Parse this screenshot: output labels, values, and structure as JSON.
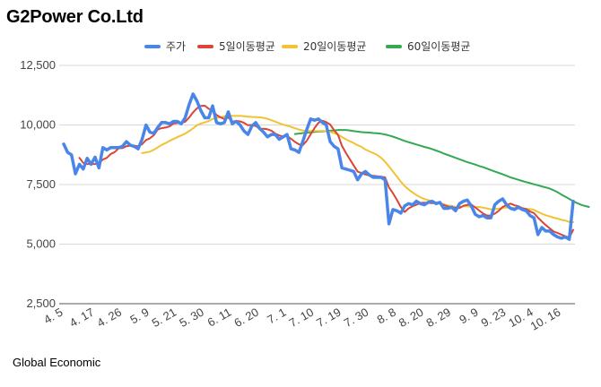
{
  "title": "G2Power Co.Ltd",
  "source": "Global Economic",
  "chart_data": {
    "type": "line",
    "ylim": [
      2500,
      12500
    ],
    "yticks": [
      "12,500",
      "10,000",
      "7,500",
      "5,000",
      "2,500"
    ],
    "ytick_values": [
      12500,
      10000,
      7500,
      5000,
      2500
    ],
    "x_tick_labels": [
      "4. 5",
      "4. 17",
      "4. 26",
      "5. 9",
      "5. 21",
      "5. 30",
      "6. 11",
      "6. 20",
      "7. 1",
      "7. 10",
      "7. 19",
      "7. 30",
      "8. 8",
      "8. 20",
      "8. 29",
      "9. 9",
      "9. 23",
      "10. 4",
      "10. 16"
    ],
    "x_tick_index": [
      0,
      8,
      15,
      22,
      29,
      36,
      43,
      50,
      57,
      64,
      71,
      78,
      85,
      92,
      99,
      106,
      113,
      120,
      127
    ],
    "n_points": 131,
    "grid": true,
    "legend_position": "top",
    "series": [
      {
        "name": "주가",
        "color": "#4a86e8",
        "width": 3.5,
        "values": [
          9200,
          8850,
          8750,
          7950,
          8350,
          8150,
          8600,
          8350,
          8650,
          8200,
          9050,
          8950,
          9050,
          9050,
          9050,
          9100,
          9300,
          9150,
          9100,
          9000,
          9400,
          10000,
          9700,
          9650,
          9900,
          10100,
          10100,
          10050,
          10150,
          10150,
          10050,
          10300,
          10850,
          11300,
          11000,
          10600,
          10300,
          10300,
          10800,
          10100,
          10050,
          10100,
          10550,
          10050,
          10150,
          10000,
          9750,
          9600,
          9950,
          10100,
          9850,
          9700,
          9500,
          9600,
          9600,
          9400,
          9500,
          9600,
          9000,
          8950,
          8850,
          9300,
          9800,
          10250,
          10200,
          10250,
          10100,
          10000,
          9300,
          9100,
          9000,
          8200,
          8150,
          8100,
          8050,
          7700,
          7950,
          8050,
          7900,
          7800,
          7800,
          7800,
          7700,
          5850,
          6450,
          6400,
          6300,
          6600,
          6700,
          6650,
          6800,
          6700,
          6650,
          6750,
          6800,
          6700,
          6750,
          6500,
          6500,
          6550,
          6400,
          6700,
          6800,
          6850,
          6600,
          6250,
          6150,
          6200,
          6100,
          6100,
          6650,
          6800,
          6900,
          6650,
          6500,
          6450,
          6550,
          6450,
          6400,
          6200,
          6100,
          5400,
          5700,
          5550,
          5550,
          5400,
          5300,
          5250,
          5300,
          5200,
          6800
        ]
      },
      {
        "name": "5일이동평균",
        "color": "#db4437",
        "width": 2,
        "values": [
          null,
          null,
          null,
          null,
          8620,
          8410,
          8360,
          8360,
          8360,
          8400,
          8550,
          8620,
          8780,
          8860,
          9020,
          9030,
          9110,
          9130,
          9130,
          9110,
          9190,
          9370,
          9440,
          9570,
          9810,
          9870,
          9890,
          9940,
          10060,
          10080,
          10090,
          10130,
          10310,
          10530,
          10700,
          10800,
          10810,
          10680,
          10600,
          10420,
          10320,
          10250,
          10320,
          10140,
          10170,
          10150,
          10090,
          9990,
          10000,
          9960,
          9840,
          9840,
          9820,
          9760,
          9640,
          9560,
          9520,
          9540,
          9420,
          9290,
          9190,
          9150,
          9330,
          9610,
          9870,
          10090,
          10180,
          10120,
          10020,
          9780,
          9590,
          9120,
          8830,
          8560,
          8300,
          8040,
          7980,
          7920,
          7880,
          7870,
          7850,
          7830,
          7800,
          7380,
          7140,
          6860,
          6560,
          6350,
          6500,
          6590,
          6650,
          6730,
          6740,
          6730,
          6720,
          6730,
          6720,
          6640,
          6580,
          6540,
          6520,
          6520,
          6610,
          6650,
          6660,
          6540,
          6410,
          6290,
          6200,
          6200,
          6280,
          6400,
          6560,
          6640,
          6700,
          6630,
          6590,
          6510,
          6470,
          6370,
          6300,
          6110,
          5950,
          5800,
          5660,
          5530,
          5470,
          5400,
          5330,
          5270,
          5600
        ]
      },
      {
        "name": "20일이동평균",
        "color": "#f1c232",
        "width": 2,
        "values": [
          null,
          null,
          null,
          null,
          null,
          null,
          null,
          null,
          null,
          null,
          null,
          null,
          null,
          null,
          null,
          null,
          null,
          null,
          null,
          null,
          8820,
          8850,
          8880,
          8960,
          9060,
          9160,
          9240,
          9330,
          9410,
          9490,
          9560,
          9640,
          9740,
          9860,
          9990,
          10060,
          10110,
          10160,
          10250,
          10300,
          10330,
          10360,
          10390,
          10380,
          10380,
          10380,
          10370,
          10350,
          10340,
          10330,
          10320,
          10300,
          10260,
          10200,
          10140,
          10070,
          10010,
          9970,
          9920,
          9860,
          9810,
          9770,
          9750,
          9750,
          9750,
          9750,
          9750,
          9740,
          9710,
          9660,
          9590,
          9500,
          9400,
          9320,
          9240,
          9150,
          9080,
          8970,
          8890,
          8820,
          8740,
          8620,
          8460,
          8260,
          8050,
          7840,
          7620,
          7440,
          7290,
          7170,
          7060,
          6970,
          6890,
          6850,
          6780,
          6740,
          6720,
          6670,
          6620,
          6600,
          6560,
          6560,
          6590,
          6590,
          6560,
          6550,
          6560,
          6530,
          6500,
          6460,
          6470,
          6490,
          6520,
          6540,
          6530,
          6510,
          6500,
          6500,
          6480,
          6470,
          6440,
          6350,
          6280,
          6210,
          6160,
          6110,
          6070,
          6020,
          5990,
          5930,
          5920
        ]
      },
      {
        "name": "60일이동평균",
        "color": "#34a853",
        "width": 2,
        "values": [
          null,
          null,
          null,
          null,
          null,
          null,
          null,
          null,
          null,
          null,
          null,
          null,
          null,
          null,
          null,
          null,
          null,
          null,
          null,
          null,
          null,
          null,
          null,
          null,
          null,
          null,
          null,
          null,
          null,
          null,
          null,
          null,
          null,
          null,
          null,
          null,
          null,
          null,
          null,
          null,
          null,
          null,
          null,
          null,
          null,
          null,
          null,
          null,
          null,
          null,
          null,
          null,
          null,
          null,
          null,
          null,
          null,
          null,
          null,
          9620,
          9640,
          9660,
          9670,
          9690,
          9710,
          9720,
          9730,
          9740,
          9760,
          9770,
          9790,
          9790,
          9790,
          9770,
          9740,
          9720,
          9700,
          9690,
          9680,
          9660,
          9650,
          9630,
          9600,
          9560,
          9510,
          9450,
          9390,
          9330,
          9280,
          9230,
          9180,
          9130,
          9080,
          9040,
          8990,
          8930,
          8870,
          8800,
          8740,
          8680,
          8620,
          8560,
          8500,
          8440,
          8390,
          8340,
          8280,
          8230,
          8170,
          8110,
          8050,
          7990,
          7930,
          7870,
          7800,
          7750,
          7700,
          7650,
          7600,
          7560,
          7510,
          7470,
          7420,
          7380,
          7330,
          7260,
          7180,
          7080,
          6990,
          6900,
          6800,
          6720,
          6650,
          6600,
          6560
        ]
      }
    ]
  }
}
